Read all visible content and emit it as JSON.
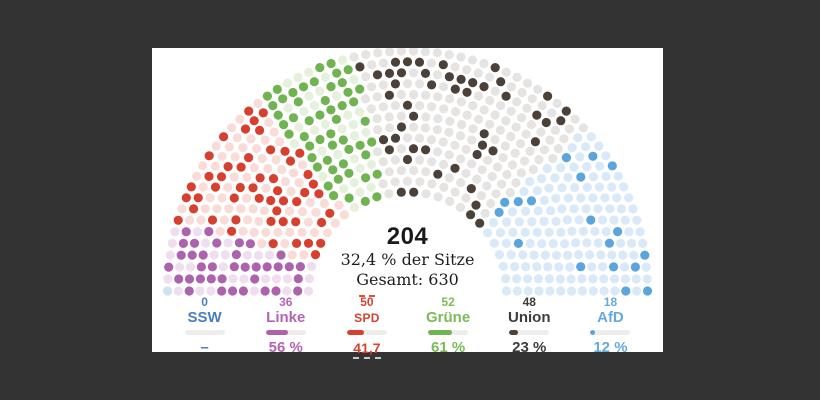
{
  "canvas": {
    "background": "#333333",
    "panel_background": "#ffffff"
  },
  "chart_data": {
    "type": "parliament-hemicycle-dot-chart",
    "title": "",
    "center": {
      "value": "204",
      "share_line": "32,4 % der Sitze",
      "total_line": "Gesamt: 630"
    },
    "total_seats": 630,
    "highlighted_seats_total": 204,
    "rows": 14,
    "legend_position": "bottom",
    "bar_track_color": "#eeedec",
    "parties": [
      {
        "id": "ssw",
        "label": "SSW",
        "seat_count_label": "0",
        "percent_label": "–",
        "seats_total": 1,
        "highlighted": 0,
        "percent_value": 0,
        "text_color": "#4a7ec2",
        "seat_color": "#4a7ec2",
        "seat_muted_color": "#cfe1f3",
        "emphasized": false
      },
      {
        "id": "linke",
        "label": "Linke",
        "seat_count_label": "36",
        "percent_label": "56 %",
        "seats_total": 64,
        "highlighted": 36,
        "percent_value": 56,
        "text_color": "#b464b4",
        "seat_color": "#ac62ac",
        "seat_muted_color": "#efdeef",
        "emphasized": false
      },
      {
        "id": "spd",
        "label": "SPD",
        "seat_count_label": "50",
        "percent_label": "41,7",
        "seats_total": 120,
        "highlighted": 50,
        "percent_value": 41.7,
        "text_color": "#d9402f",
        "seat_color": "#d7402f",
        "seat_muted_color": "#f9dcd7",
        "emphasized": true
      },
      {
        "id": "gruene",
        "label": "Grüne",
        "seat_count_label": "52",
        "percent_label": "61 %",
        "seats_total": 85,
        "highlighted": 52,
        "percent_value": 61,
        "text_color": "#7cba58",
        "seat_color": "#70b351",
        "seat_muted_color": "#e6f1dd",
        "emphasized": false
      },
      {
        "id": "union",
        "label": "Union",
        "seat_count_label": "48",
        "percent_label": "23 %",
        "seats_total": 208,
        "highlighted": 48,
        "percent_value": 23,
        "text_color": "#3c3c3c",
        "seat_color": "#4b4139",
        "seat_muted_color": "#e6e4e2",
        "emphasized": false
      },
      {
        "id": "afd",
        "label": "AfD",
        "seat_count_label": "18",
        "percent_label": "12 %",
        "seats_total": 152,
        "highlighted": 18,
        "percent_value": 12,
        "text_color": "#66aadd",
        "seat_color": "#5ba5de",
        "seat_muted_color": "#d9e9f7",
        "emphasized": false
      }
    ]
  }
}
